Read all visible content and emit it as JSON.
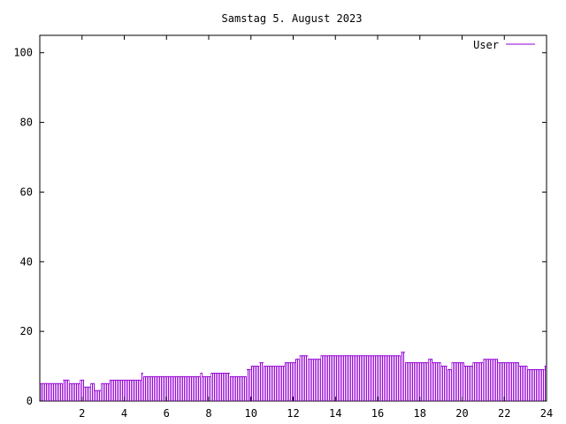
{
  "chart_data": {
    "type": "bar",
    "title": "Samstag 5. August 2023",
    "xlabel": "",
    "ylabel": "",
    "xlim": [
      0,
      24
    ],
    "ylim": [
      0,
      105
    ],
    "x_ticks": [
      2,
      4,
      6,
      8,
      10,
      12,
      14,
      16,
      18,
      20,
      22,
      24
    ],
    "y_ticks": [
      0,
      20,
      40,
      60,
      80,
      100
    ],
    "grid": false,
    "legend_position": "top-right",
    "series": [
      {
        "name": "User",
        "color": "#9400d3",
        "segments": [
          {
            "x_start": 0.0,
            "x_end": 1.1,
            "value": 5
          },
          {
            "x_start": 1.1,
            "x_end": 1.4,
            "value": 6
          },
          {
            "x_start": 1.4,
            "x_end": 1.9,
            "value": 5
          },
          {
            "x_start": 1.9,
            "x_end": 2.1,
            "value": 6
          },
          {
            "x_start": 2.1,
            "x_end": 2.4,
            "value": 4
          },
          {
            "x_start": 2.4,
            "x_end": 2.6,
            "value": 5
          },
          {
            "x_start": 2.6,
            "x_end": 2.9,
            "value": 3
          },
          {
            "x_start": 2.9,
            "x_end": 3.3,
            "value": 5
          },
          {
            "x_start": 3.3,
            "x_end": 4.8,
            "value": 6
          },
          {
            "x_start": 4.8,
            "x_end": 4.9,
            "value": 8
          },
          {
            "x_start": 4.9,
            "x_end": 7.6,
            "value": 7
          },
          {
            "x_start": 7.6,
            "x_end": 7.7,
            "value": 8
          },
          {
            "x_start": 7.7,
            "x_end": 8.1,
            "value": 7
          },
          {
            "x_start": 8.1,
            "x_end": 9.0,
            "value": 8
          },
          {
            "x_start": 9.0,
            "x_end": 9.8,
            "value": 7
          },
          {
            "x_start": 9.8,
            "x_end": 10.0,
            "value": 9
          },
          {
            "x_start": 10.0,
            "x_end": 10.4,
            "value": 10
          },
          {
            "x_start": 10.4,
            "x_end": 10.6,
            "value": 11
          },
          {
            "x_start": 10.6,
            "x_end": 11.6,
            "value": 10
          },
          {
            "x_start": 11.6,
            "x_end": 12.1,
            "value": 11
          },
          {
            "x_start": 12.1,
            "x_end": 12.3,
            "value": 12
          },
          {
            "x_start": 12.3,
            "x_end": 12.7,
            "value": 13
          },
          {
            "x_start": 12.7,
            "x_end": 13.3,
            "value": 12
          },
          {
            "x_start": 13.3,
            "x_end": 17.1,
            "value": 13
          },
          {
            "x_start": 17.1,
            "x_end": 17.3,
            "value": 14
          },
          {
            "x_start": 17.3,
            "x_end": 18.4,
            "value": 11
          },
          {
            "x_start": 18.4,
            "x_end": 18.6,
            "value": 12
          },
          {
            "x_start": 18.6,
            "x_end": 19.0,
            "value": 11
          },
          {
            "x_start": 19.0,
            "x_end": 19.3,
            "value": 10
          },
          {
            "x_start": 19.3,
            "x_end": 19.5,
            "value": 9
          },
          {
            "x_start": 19.5,
            "x_end": 20.1,
            "value": 11
          },
          {
            "x_start": 20.1,
            "x_end": 20.5,
            "value": 10
          },
          {
            "x_start": 20.5,
            "x_end": 21.0,
            "value": 11
          },
          {
            "x_start": 21.0,
            "x_end": 21.7,
            "value": 12
          },
          {
            "x_start": 21.7,
            "x_end": 22.7,
            "value": 11
          },
          {
            "x_start": 22.7,
            "x_end": 23.1,
            "value": 10
          },
          {
            "x_start": 23.1,
            "x_end": 23.9,
            "value": 9
          },
          {
            "x_start": 23.9,
            "x_end": 24.0,
            "value": 10
          }
        ]
      }
    ]
  }
}
